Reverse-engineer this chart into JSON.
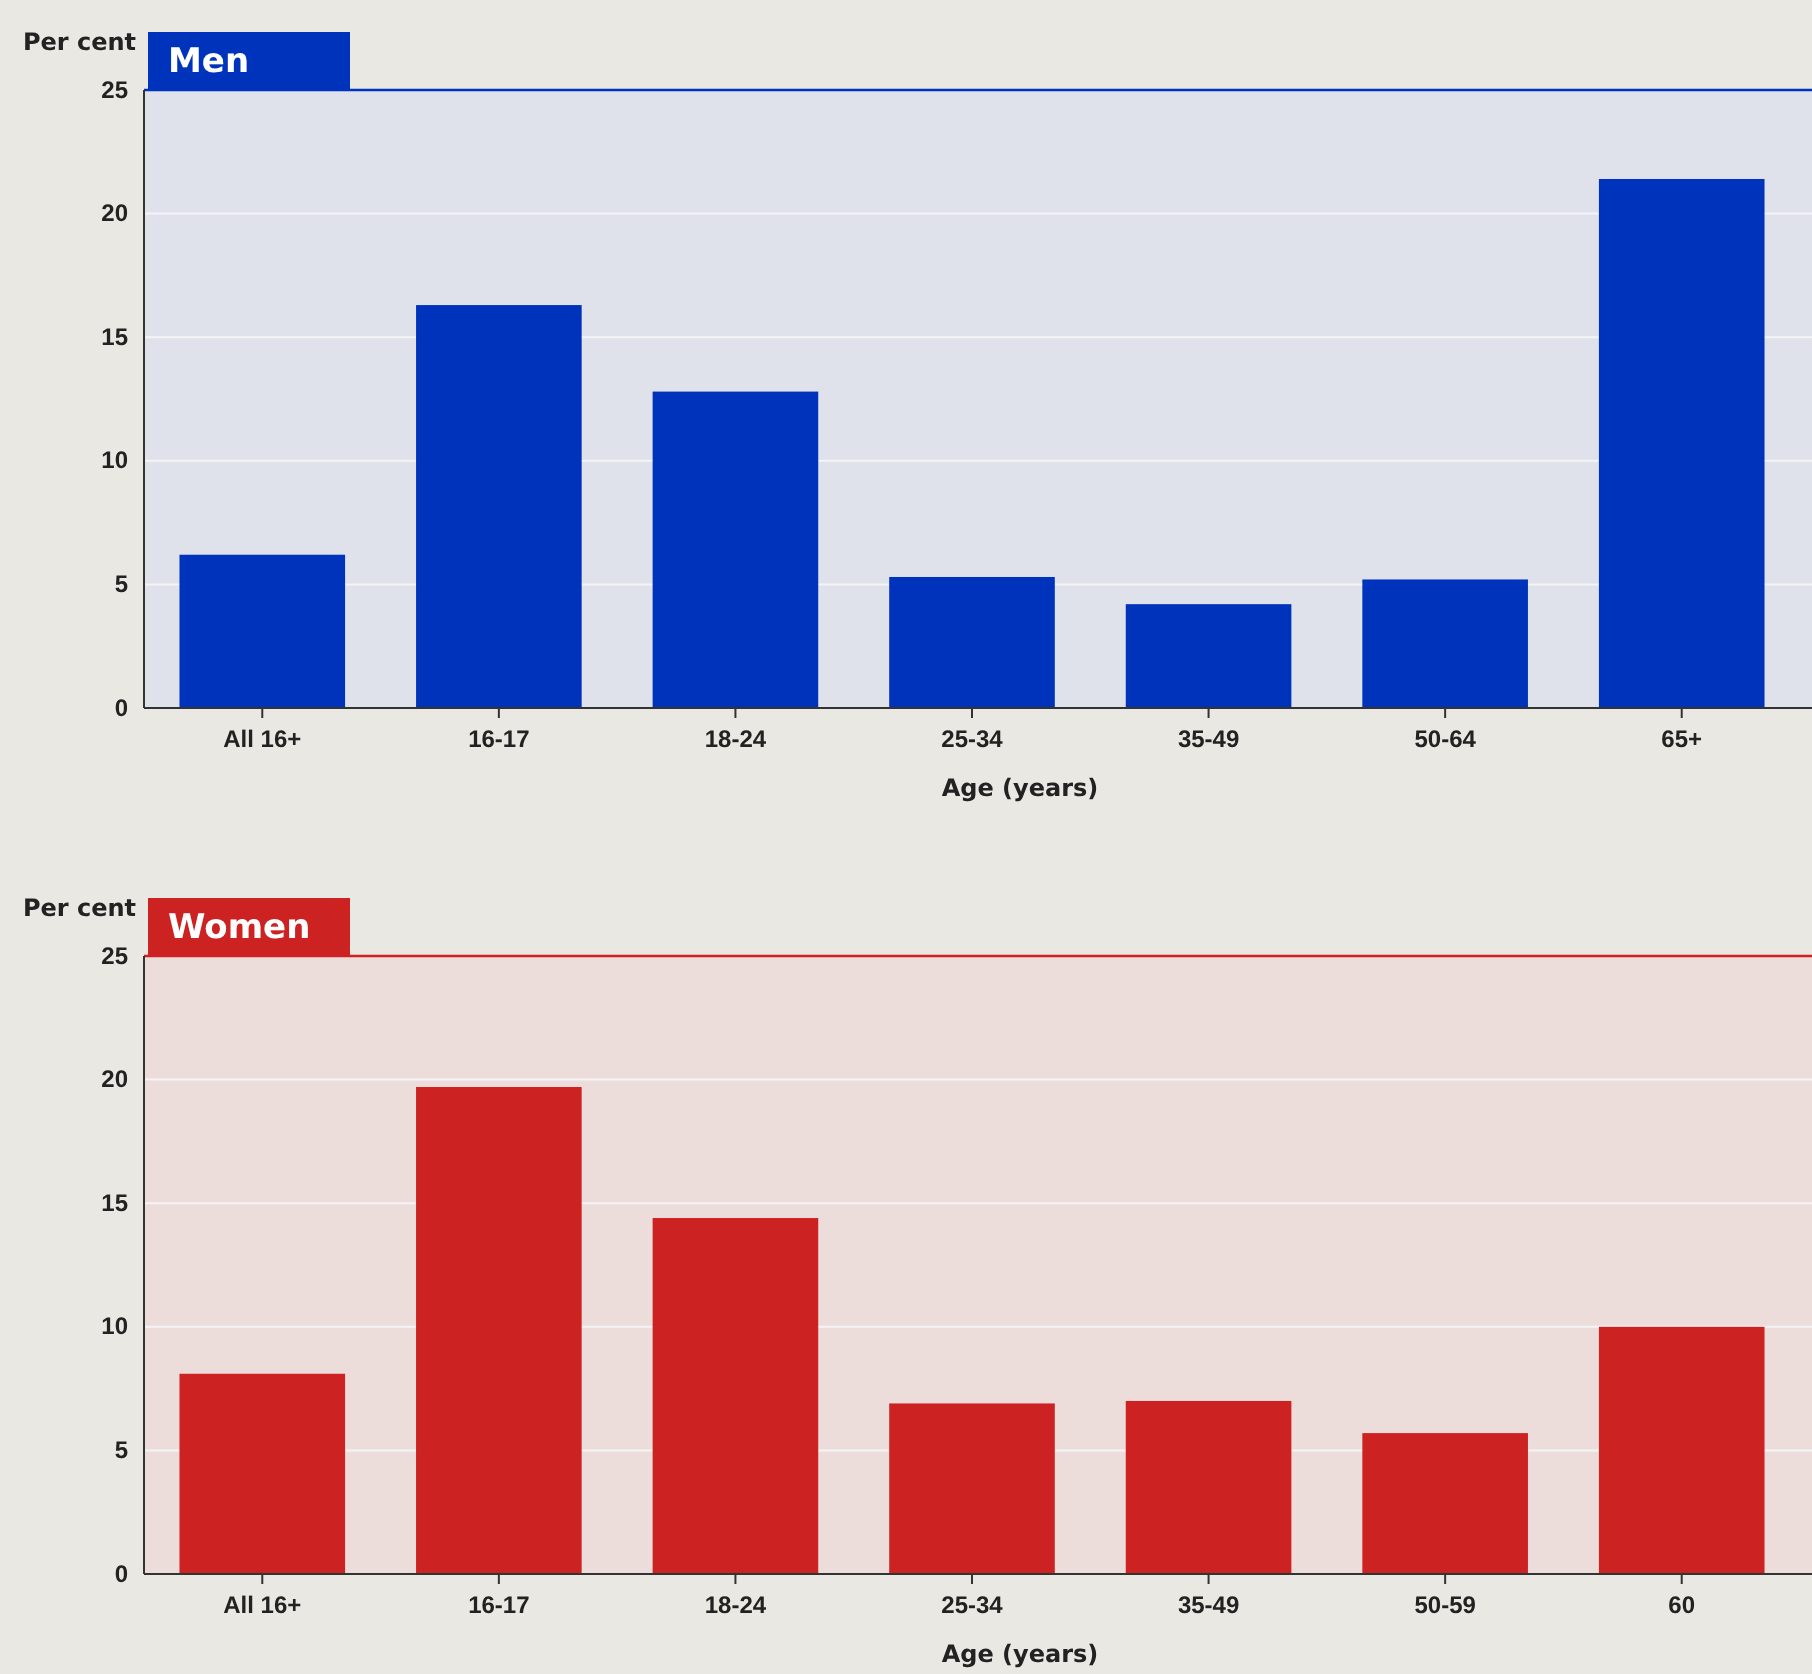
{
  "chart_data": [
    {
      "type": "bar",
      "title": "Men",
      "ylabel": "Per cent",
      "xlabel": "Age (years)",
      "categories": [
        "All 16+",
        "16-17",
        "18-24",
        "25-34",
        "35-49",
        "50-64",
        "65+"
      ],
      "values": [
        6.2,
        16.3,
        12.8,
        5.3,
        4.2,
        5.2,
        21.4
      ],
      "color": "#0033bb",
      "ylim": [
        0,
        25
      ],
      "yticks": [
        0,
        5,
        10,
        15,
        20,
        25
      ],
      "grid": "y"
    },
    {
      "type": "bar",
      "title": "Women",
      "ylabel": "Per cent",
      "xlabel": "Age (years)",
      "categories": [
        "All 16+",
        "16-17",
        "18-24",
        "25-34",
        "35-49",
        "50-59",
        "60"
      ],
      "values": [
        8.1,
        19.7,
        14.4,
        6.9,
        7.0,
        5.7,
        10.0
      ],
      "color": "#cc2222",
      "ylim": [
        0,
        25
      ],
      "yticks": [
        0,
        5,
        10,
        15,
        20,
        25
      ],
      "grid": "y"
    }
  ]
}
